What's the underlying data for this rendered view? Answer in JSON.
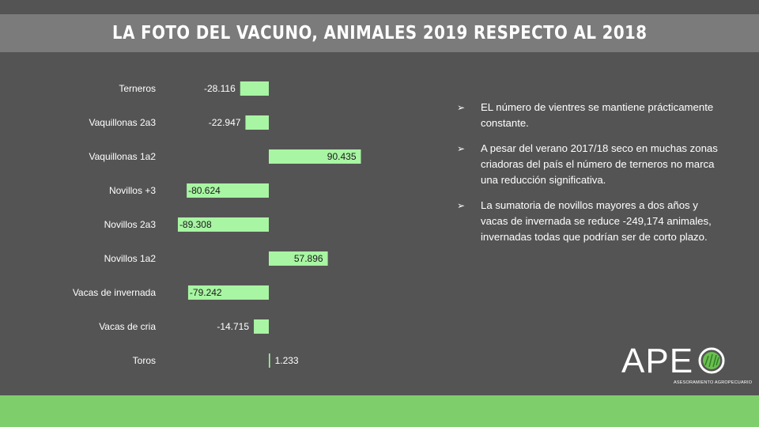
{
  "title": "LA FOTO DEL VACUNO, ANIMALES 2019 RESPECTO AL 2018",
  "chart_data": {
    "type": "bar",
    "orientation": "horizontal",
    "categories": [
      "Terneros",
      "Vaquillonas 2a3",
      "Vaquillonas 1a2",
      "Novillos +3",
      "Novillos 2a3",
      "Novillos 1a2",
      "Vacas de invernada",
      "Vacas de cria",
      "Toros"
    ],
    "values": [
      -28116,
      -22947,
      90435,
      -80624,
      -89308,
      57896,
      -79242,
      -14715,
      1233
    ],
    "value_labels": [
      "-28.116",
      "-22.947",
      "90.435",
      "-80.624",
      "-89.308",
      "57.896",
      "-79.242",
      "-14.715",
      "1.233"
    ],
    "bar_color": "#a8f5a3",
    "grid": false
  },
  "bullets": [
    "EL número  de vientres se mantiene prácticamente constante.",
    "A pesar del verano 2017/18 seco en muchas zonas criadoras del país el número  de terneros  no marca una reducción significativa.",
    "La sumatoria de novillos mayores a dos años y vacas de invernada se reduce  -249,174 animales, invernadas todas que podrían ser de corto plazo."
  ],
  "bullet_icon": "arrow-bullet-icon",
  "logo": {
    "text": "APE",
    "subtitle": "ASESORAMIENTO AGROPECUARIO"
  },
  "colors": {
    "background": "#545454",
    "title_band": "#7b7b7b",
    "footer_band": "#7fce6c",
    "bar": "#a8f5a3"
  }
}
